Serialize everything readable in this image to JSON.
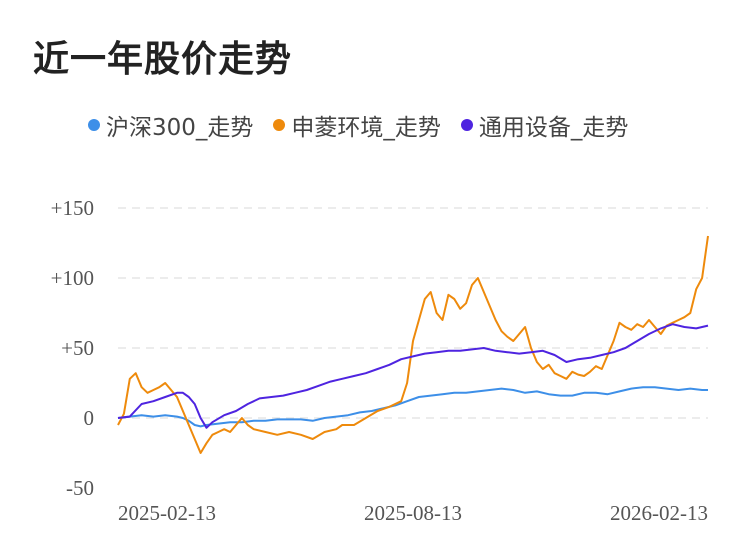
{
  "header": {
    "title": "近一年股价走势"
  },
  "chart_data": {
    "type": "line",
    "title": "近一年股价走势",
    "xlabel": "",
    "ylabel": "",
    "x_tick_labels": [
      "2025-02-13",
      "2025-08-13",
      "2026-02-13"
    ],
    "y_ticks": [
      {
        "value": 150,
        "label": "+150"
      },
      {
        "value": 100,
        "label": "+100"
      },
      {
        "value": 50,
        "label": "+50"
      },
      {
        "value": 0,
        "label": "0"
      },
      {
        "value": -50,
        "label": "-50"
      }
    ],
    "ylim": [
      -50,
      150
    ],
    "xlim": [
      0,
      100
    ],
    "grid": true,
    "legend_position": "top",
    "series": [
      {
        "name": "沪深300_走势",
        "color": "#3d8fe8",
        "points": [
          [
            0,
            0
          ],
          [
            2,
            1
          ],
          [
            4,
            2
          ],
          [
            6,
            1
          ],
          [
            8,
            2
          ],
          [
            10,
            1
          ],
          [
            11,
            0
          ],
          [
            12,
            -2
          ],
          [
            13,
            -5
          ],
          [
            14,
            -6
          ],
          [
            15,
            -5
          ],
          [
            17,
            -4
          ],
          [
            19,
            -3
          ],
          [
            21,
            -3
          ],
          [
            23,
            -2
          ],
          [
            25,
            -2
          ],
          [
            27,
            -1
          ],
          [
            29,
            -1
          ],
          [
            31,
            -1
          ],
          [
            33,
            -2
          ],
          [
            35,
            0
          ],
          [
            37,
            1
          ],
          [
            39,
            2
          ],
          [
            41,
            4
          ],
          [
            43,
            5
          ],
          [
            45,
            7
          ],
          [
            47,
            9
          ],
          [
            49,
            12
          ],
          [
            51,
            15
          ],
          [
            53,
            16
          ],
          [
            55,
            17
          ],
          [
            57,
            18
          ],
          [
            59,
            18
          ],
          [
            61,
            19
          ],
          [
            63,
            20
          ],
          [
            65,
            21
          ],
          [
            67,
            20
          ],
          [
            69,
            18
          ],
          [
            71,
            19
          ],
          [
            73,
            17
          ],
          [
            75,
            16
          ],
          [
            77,
            16
          ],
          [
            79,
            18
          ],
          [
            81,
            18
          ],
          [
            83,
            17
          ],
          [
            85,
            19
          ],
          [
            87,
            21
          ],
          [
            89,
            22
          ],
          [
            91,
            22
          ],
          [
            93,
            21
          ],
          [
            95,
            20
          ],
          [
            97,
            21
          ],
          [
            99,
            20
          ],
          [
            100,
            20
          ]
        ]
      },
      {
        "name": "申菱环境_走势",
        "color": "#ee8a0c",
        "points": [
          [
            0,
            -5
          ],
          [
            1,
            3
          ],
          [
            2,
            28
          ],
          [
            3,
            32
          ],
          [
            4,
            22
          ],
          [
            5,
            18
          ],
          [
            6,
            20
          ],
          [
            7,
            22
          ],
          [
            8,
            25
          ],
          [
            9,
            20
          ],
          [
            10,
            15
          ],
          [
            11,
            5
          ],
          [
            12,
            -5
          ],
          [
            13,
            -15
          ],
          [
            14,
            -25
          ],
          [
            15,
            -18
          ],
          [
            16,
            -12
          ],
          [
            17,
            -10
          ],
          [
            18,
            -8
          ],
          [
            19,
            -10
          ],
          [
            20,
            -5
          ],
          [
            21,
            0
          ],
          [
            22,
            -5
          ],
          [
            23,
            -8
          ],
          [
            25,
            -10
          ],
          [
            27,
            -12
          ],
          [
            29,
            -10
          ],
          [
            31,
            -12
          ],
          [
            33,
            -15
          ],
          [
            35,
            -10
          ],
          [
            37,
            -8
          ],
          [
            38,
            -5
          ],
          [
            40,
            -5
          ],
          [
            42,
            0
          ],
          [
            44,
            5
          ],
          [
            46,
            8
          ],
          [
            48,
            12
          ],
          [
            49,
            25
          ],
          [
            50,
            55
          ],
          [
            51,
            70
          ],
          [
            52,
            85
          ],
          [
            53,
            90
          ],
          [
            54,
            75
          ],
          [
            55,
            70
          ],
          [
            56,
            88
          ],
          [
            57,
            85
          ],
          [
            58,
            78
          ],
          [
            59,
            82
          ],
          [
            60,
            95
          ],
          [
            61,
            100
          ],
          [
            62,
            90
          ],
          [
            63,
            80
          ],
          [
            64,
            70
          ],
          [
            65,
            62
          ],
          [
            66,
            58
          ],
          [
            67,
            55
          ],
          [
            68,
            60
          ],
          [
            69,
            65
          ],
          [
            70,
            50
          ],
          [
            71,
            40
          ],
          [
            72,
            35
          ],
          [
            73,
            38
          ],
          [
            74,
            32
          ],
          [
            75,
            30
          ],
          [
            76,
            28
          ],
          [
            77,
            33
          ],
          [
            78,
            31
          ],
          [
            79,
            30
          ],
          [
            80,
            33
          ],
          [
            81,
            37
          ],
          [
            82,
            35
          ],
          [
            83,
            45
          ],
          [
            84,
            55
          ],
          [
            85,
            68
          ],
          [
            86,
            65
          ],
          [
            87,
            63
          ],
          [
            88,
            67
          ],
          [
            89,
            65
          ],
          [
            90,
            70
          ],
          [
            91,
            65
          ],
          [
            92,
            60
          ],
          [
            93,
            66
          ],
          [
            94,
            68
          ],
          [
            95,
            70
          ],
          [
            96,
            72
          ],
          [
            97,
            75
          ],
          [
            98,
            92
          ],
          [
            99,
            100
          ],
          [
            100,
            130
          ]
        ]
      },
      {
        "name": "通用设备_走势",
        "color": "#4e24e0",
        "points": [
          [
            0,
            0
          ],
          [
            2,
            1
          ],
          [
            4,
            10
          ],
          [
            6,
            12
          ],
          [
            8,
            15
          ],
          [
            10,
            18
          ],
          [
            11,
            18
          ],
          [
            12,
            15
          ],
          [
            13,
            10
          ],
          [
            14,
            0
          ],
          [
            15,
            -7
          ],
          [
            16,
            -3
          ],
          [
            18,
            2
          ],
          [
            20,
            5
          ],
          [
            22,
            10
          ],
          [
            24,
            14
          ],
          [
            26,
            15
          ],
          [
            28,
            16
          ],
          [
            30,
            18
          ],
          [
            32,
            20
          ],
          [
            34,
            23
          ],
          [
            36,
            26
          ],
          [
            38,
            28
          ],
          [
            40,
            30
          ],
          [
            42,
            32
          ],
          [
            44,
            35
          ],
          [
            46,
            38
          ],
          [
            48,
            42
          ],
          [
            50,
            44
          ],
          [
            52,
            46
          ],
          [
            54,
            47
          ],
          [
            56,
            48
          ],
          [
            58,
            48
          ],
          [
            60,
            49
          ],
          [
            62,
            50
          ],
          [
            64,
            48
          ],
          [
            66,
            47
          ],
          [
            68,
            46
          ],
          [
            70,
            47
          ],
          [
            72,
            48
          ],
          [
            74,
            45
          ],
          [
            76,
            40
          ],
          [
            78,
            42
          ],
          [
            80,
            43
          ],
          [
            82,
            45
          ],
          [
            84,
            47
          ],
          [
            86,
            50
          ],
          [
            88,
            55
          ],
          [
            90,
            60
          ],
          [
            92,
            64
          ],
          [
            94,
            67
          ],
          [
            96,
            65
          ],
          [
            98,
            64
          ],
          [
            100,
            66
          ]
        ]
      }
    ]
  }
}
